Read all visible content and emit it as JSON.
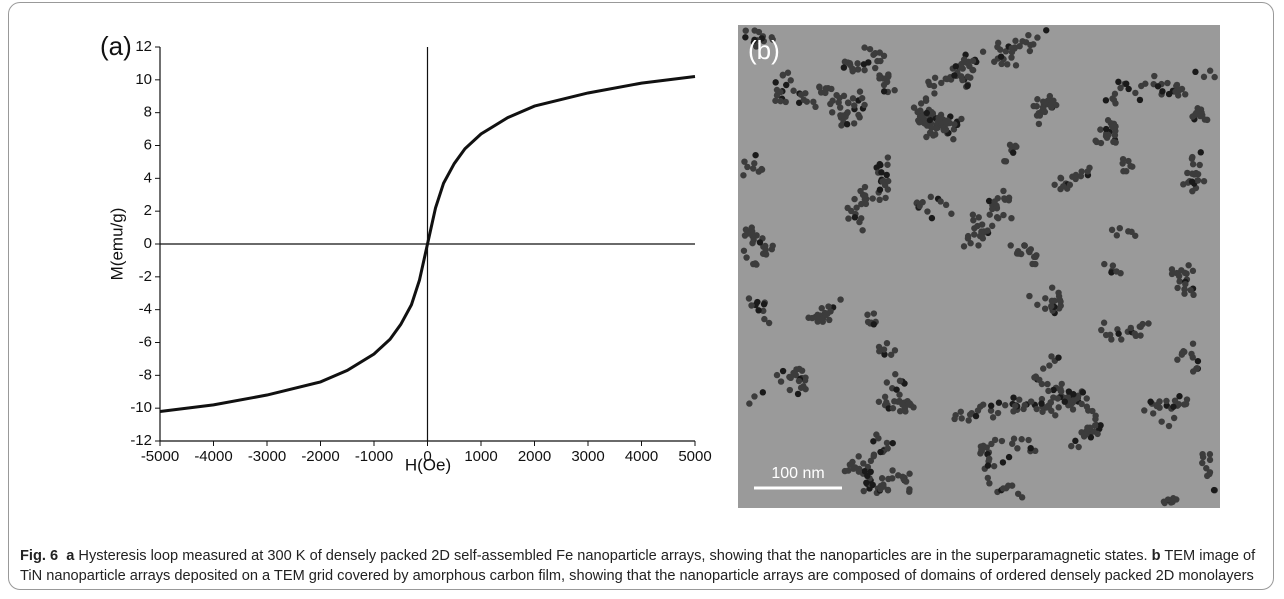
{
  "chart_data": {
    "type": "line",
    "annotation": "(a)",
    "xlabel": "H(Oe)",
    "ylabel": "M(emu/g)",
    "x": [
      -5000,
      -4000,
      -3000,
      -2000,
      -1500,
      -1000,
      -700,
      -500,
      -300,
      -150,
      0,
      150,
      300,
      500,
      700,
      1000,
      1500,
      2000,
      3000,
      4000,
      5000
    ],
    "values": [
      -10.2,
      -9.8,
      -9.2,
      -8.4,
      -7.7,
      -6.7,
      -5.8,
      -4.9,
      -3.7,
      -2.2,
      0,
      2.2,
      3.7,
      4.9,
      5.8,
      6.7,
      7.7,
      8.4,
      9.2,
      9.8,
      10.2
    ],
    "color": "#111111",
    "xlim": [
      -5000,
      5000
    ],
    "xticks": [
      -5000,
      -4000,
      -3000,
      -2000,
      -1000,
      0,
      1000,
      2000,
      3000,
      4000,
      5000
    ],
    "ylim": [
      -12,
      12
    ],
    "yticks": [
      -12,
      -10,
      -8,
      -6,
      -4,
      -2,
      0,
      2,
      4,
      6,
      8,
      10,
      12
    ]
  },
  "image": {
    "label": "(b)",
    "scale_bar": "100 nm"
  },
  "caption": {
    "figure": "Fig. 6",
    "a": "a",
    "a_text": " Hysteresis loop measured at 300 K of densely packed 2D self-assembled Fe nanoparticle arrays, showing that the nanoparticles are in the superparamagnetic states. ",
    "b": "b",
    "b_text": " TEM image of TiN nanoparticle arrays deposited on a TEM grid covered by amorphous carbon film, showing that the nanoparticle arrays are composed of domains of ordered densely packed 2D monolayers"
  }
}
